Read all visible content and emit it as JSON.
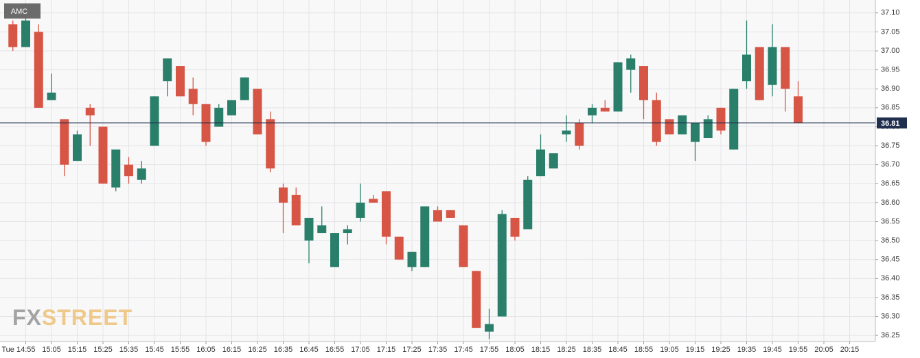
{
  "chart_data": {
    "type": "candlestick",
    "name": "AMC",
    "watermark": [
      "FX",
      "STREET"
    ],
    "up_color": "#2a7f6b",
    "down_color": "#d65545",
    "grid": true,
    "categories": [
      "14:50",
      "14:55",
      "15:00",
      "15:05",
      "15:10",
      "15:15",
      "15:20",
      "15:25",
      "15:30",
      "15:35",
      "15:40",
      "15:45",
      "15:50",
      "15:55",
      "16:00",
      "16:05",
      "16:10",
      "16:15",
      "16:20",
      "16:25",
      "16:30",
      "16:35",
      "16:40",
      "16:45",
      "16:50",
      "16:55",
      "17:00",
      "17:05",
      "17:10",
      "17:15",
      "17:20",
      "17:25",
      "17:30",
      "17:35",
      "17:40",
      "17:45",
      "17:50",
      "17:55",
      "18:00",
      "18:05",
      "18:10",
      "18:15",
      "18:20",
      "18:25",
      "18:30",
      "18:35",
      "18:40",
      "18:45",
      "18:50",
      "18:55",
      "19:00",
      "19:05",
      "19:10",
      "19:15",
      "19:20",
      "19:25",
      "19:30",
      "19:35",
      "19:40",
      "19:45",
      "19:50",
      "19:55"
    ],
    "open": [
      37.07,
      37.01,
      37.05,
      36.87,
      36.82,
      36.71,
      36.85,
      36.8,
      36.64,
      36.7,
      36.66,
      36.75,
      36.92,
      36.96,
      36.9,
      36.86,
      36.8,
      36.83,
      36.87,
      36.9,
      36.82,
      36.64,
      36.62,
      36.5,
      36.52,
      36.43,
      36.52,
      36.56,
      36.61,
      36.63,
      36.51,
      36.43,
      36.43,
      36.58,
      36.58,
      36.54,
      36.42,
      36.26,
      36.3,
      36.56,
      36.53,
      36.67,
      36.69,
      36.78,
      36.81,
      36.83,
      36.85,
      36.84,
      36.95,
      36.96,
      36.87,
      36.82,
      36.78,
      36.76,
      36.77,
      36.85,
      36.74,
      36.92,
      37.01,
      36.91,
      37.01,
      36.88
    ],
    "high": [
      37.08,
      37.09,
      37.07,
      36.94,
      36.82,
      36.79,
      36.86,
      36.8,
      36.74,
      36.72,
      36.71,
      36.88,
      36.98,
      36.96,
      36.93,
      36.86,
      36.86,
      36.87,
      36.93,
      36.9,
      36.84,
      36.65,
      36.64,
      36.56,
      36.59,
      36.52,
      36.54,
      36.65,
      36.62,
      36.63,
      36.51,
      36.47,
      36.59,
      36.59,
      36.58,
      36.54,
      36.42,
      36.32,
      36.58,
      36.56,
      36.67,
      36.78,
      36.73,
      36.83,
      36.82,
      36.86,
      36.87,
      36.97,
      36.99,
      36.96,
      36.89,
      36.82,
      36.83,
      36.81,
      36.83,
      36.85,
      36.9,
      37.08,
      37.01,
      37.07,
      37.01,
      36.92
    ],
    "low": [
      37.0,
      37.01,
      36.85,
      36.87,
      36.67,
      36.71,
      36.75,
      36.65,
      36.63,
      36.65,
      36.65,
      36.75,
      36.88,
      36.88,
      36.83,
      36.75,
      36.8,
      36.83,
      36.87,
      36.78,
      36.68,
      36.52,
      36.54,
      36.44,
      36.52,
      36.43,
      36.49,
      36.55,
      36.6,
      36.49,
      36.45,
      36.42,
      36.43,
      36.55,
      36.56,
      36.43,
      36.27,
      36.24,
      36.3,
      36.5,
      36.53,
      36.67,
      36.69,
      36.76,
      36.74,
      36.81,
      36.84,
      36.84,
      36.89,
      36.82,
      36.75,
      36.78,
      36.78,
      36.71,
      36.77,
      36.78,
      36.74,
      36.9,
      36.87,
      36.88,
      36.84,
      36.81
    ],
    "close": [
      37.01,
      37.08,
      36.85,
      36.89,
      36.7,
      36.78,
      36.83,
      36.65,
      36.74,
      36.67,
      36.69,
      36.88,
      36.98,
      36.88,
      36.86,
      36.76,
      36.85,
      36.87,
      36.93,
      36.78,
      36.69,
      36.6,
      36.54,
      36.56,
      36.54,
      36.52,
      36.53,
      36.6,
      36.6,
      36.51,
      36.45,
      36.47,
      36.59,
      36.55,
      36.56,
      36.43,
      36.27,
      36.28,
      36.57,
      36.51,
      36.66,
      36.74,
      36.73,
      36.79,
      36.75,
      36.85,
      36.84,
      36.97,
      36.98,
      36.87,
      36.76,
      36.78,
      36.83,
      36.81,
      36.82,
      36.79,
      36.9,
      36.99,
      36.87,
      37.01,
      36.9,
      36.81
    ],
    "last_price": 36.81,
    "last_price_color": "#1f2f4d",
    "xlim": [
      "14:45",
      "20:25"
    ],
    "xticks": [
      {
        "value": "14:55",
        "label": "Tue 14:55"
      },
      "15:05",
      "15:15",
      "15:25",
      "15:35",
      "15:45",
      "15:55",
      "16:05",
      "16:15",
      "16:25",
      "16:35",
      "16:45",
      "16:55",
      "17:05",
      "17:15",
      "17:25",
      "17:35",
      "17:45",
      "17:55",
      "18:05",
      "18:15",
      "18:25",
      "18:35",
      "18:45",
      "18:55",
      "19:05",
      "19:15",
      "19:25",
      "19:35",
      "19:45",
      "19:55",
      "20:05",
      "20:15"
    ],
    "ylim": [
      36.234,
      37.134
    ],
    "yticks": [
      36.25,
      {
        "value": 36.3,
        "label": "36.30"
      },
      36.35,
      {
        "value": 36.4,
        "label": "36.40"
      },
      36.45,
      {
        "value": 36.5,
        "label": "36.50"
      },
      36.55,
      {
        "value": 36.6,
        "label": "36.60"
      },
      36.65,
      {
        "value": 36.7,
        "label": "36.70"
      },
      36.75,
      {
        "value": 36.8,
        "label": "36.80"
      },
      36.85,
      {
        "value": 36.9,
        "label": "36.90"
      },
      36.95,
      {
        "value": 37,
        "label": "37.00"
      },
      37.05,
      {
        "value": 37.1,
        "label": "37.10"
      }
    ]
  }
}
